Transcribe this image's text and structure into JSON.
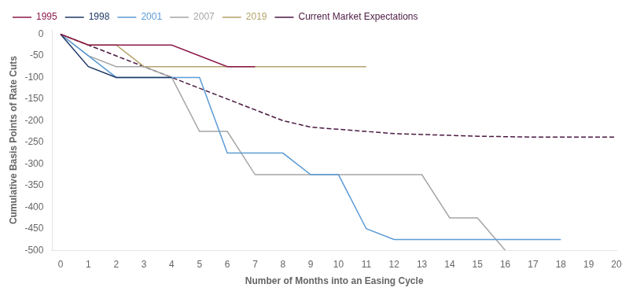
{
  "chart_data": {
    "type": "line",
    "xlabel": "Number of Months into an Easing Cycle",
    "ylabel": "Cumulative Basis Points of Rate Cuts",
    "series": [
      {
        "name": "1995",
        "color": "#8B1A4A",
        "line_style": "solid",
        "x": [
          0,
          1,
          2,
          3,
          4,
          5,
          6,
          7
        ],
        "values": [
          0,
          -25,
          -25,
          -25,
          -25,
          -50,
          -75,
          -75
        ]
      },
      {
        "name": "1998",
        "color": "#1F3864",
        "line_style": "solid",
        "x": [
          0,
          1,
          2,
          3,
          4
        ],
        "values": [
          0,
          -75,
          -100,
          -100,
          -100
        ]
      },
      {
        "name": "2001",
        "color": "#5B9BD5",
        "line_style": "solid",
        "x": [
          0,
          1,
          2,
          3,
          4,
          5,
          6,
          7,
          8,
          9,
          10,
          11,
          12,
          13,
          14,
          15,
          16,
          17,
          18
        ],
        "values": [
          0,
          -50,
          -100,
          -100,
          -100,
          -100,
          -275,
          -275,
          -275,
          -325,
          -325,
          -450,
          -475,
          -475,
          -475,
          -475,
          -475,
          -475,
          -475
        ]
      },
      {
        "name": "2007",
        "color": "#A5A5A5",
        "line_style": "solid",
        "x": [
          0,
          1,
          2,
          3,
          4,
          5,
          6,
          7,
          8,
          9,
          10,
          11,
          12,
          13,
          14,
          15,
          16
        ],
        "values": [
          0,
          -50,
          -75,
          -75,
          -100,
          -225,
          -225,
          -325,
          -325,
          -325,
          -325,
          -325,
          -325,
          -325,
          -425,
          -425,
          -500
        ]
      },
      {
        "name": "2019",
        "color": "#B5A36A",
        "line_style": "solid",
        "x": [
          0,
          1,
          2,
          3,
          4,
          5,
          6,
          7,
          8,
          9,
          10,
          11
        ],
        "values": [
          0,
          -25,
          -25,
          -75,
          -75,
          -75,
          -75,
          -75,
          -75,
          -75,
          -75,
          -75
        ]
      },
      {
        "name": "Current Market Expectations",
        "color": "#4A1942",
        "line_style": "dashed",
        "x": [
          0,
          1,
          2,
          3,
          4,
          5,
          6,
          7,
          8,
          9,
          10,
          11,
          12,
          13,
          14,
          15,
          16,
          17,
          18,
          19,
          20
        ],
        "values": [
          0,
          -25,
          -50,
          -75,
          -100,
          -125,
          -150,
          -175,
          -200,
          -215,
          -220,
          -225,
          -230,
          -232,
          -234,
          -236,
          -237,
          -238,
          -238,
          -238,
          -238
        ]
      }
    ],
    "xlim": [
      -0.3,
      20
    ],
    "ylim": [
      -500,
      10
    ],
    "xticks": [
      0,
      1,
      2,
      3,
      4,
      5,
      6,
      7,
      8,
      9,
      10,
      11,
      12,
      13,
      14,
      15,
      16,
      17,
      18,
      19,
      20
    ],
    "yticks": [
      0,
      -50,
      -100,
      -150,
      -200,
      -250,
      -300,
      -350,
      -400,
      -450,
      -500
    ],
    "grid": false,
    "legend": "upper left"
  }
}
